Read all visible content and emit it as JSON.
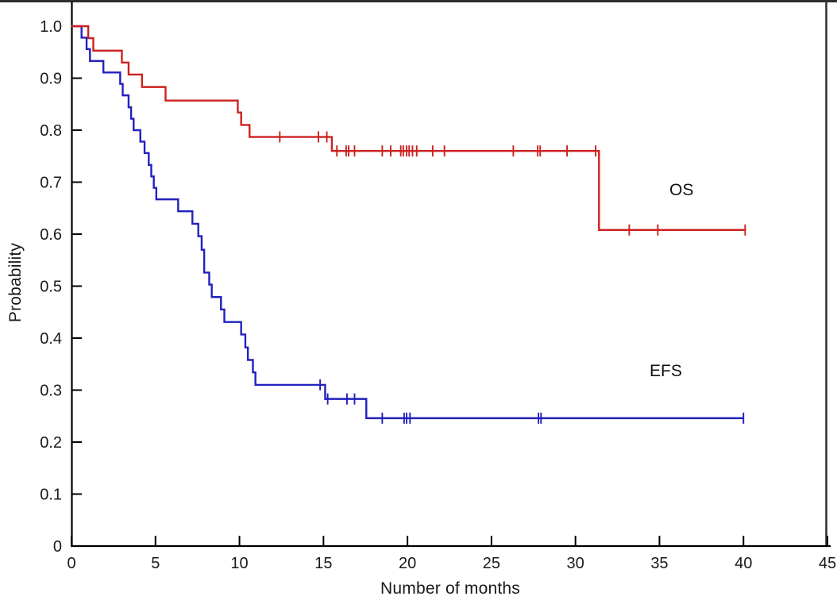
{
  "figure": {
    "ylabel": "Probability",
    "xlabel": "Number of months"
  },
  "chart_data": {
    "type": "line",
    "subtype": "kaplan-meier-step",
    "title": "",
    "xlabel": "Number of months",
    "ylabel": "Probability",
    "xlim": [
      0,
      45
    ],
    "ylim": [
      0,
      1.0
    ],
    "grid": false,
    "legend_position": "inline-labels",
    "x_ticks": [
      {
        "v": 0,
        "label": "0"
      },
      {
        "v": 5,
        "label": "5"
      },
      {
        "v": 10,
        "label": "10"
      },
      {
        "v": 15,
        "label": "15"
      },
      {
        "v": 20,
        "label": "20"
      },
      {
        "v": 25,
        "label": "25"
      },
      {
        "v": 30,
        "label": "30"
      },
      {
        "v": 35,
        "label": "35"
      },
      {
        "v": 40,
        "label": "40"
      },
      {
        "v": 45,
        "label": "45"
      }
    ],
    "y_ticks": [
      {
        "v": 0.0,
        "label": "0"
      },
      {
        "v": 0.1,
        "label": "0.1"
      },
      {
        "v": 0.2,
        "label": "0.2"
      },
      {
        "v": 0.3,
        "label": "0.3"
      },
      {
        "v": 0.4,
        "label": "0.4"
      },
      {
        "v": 0.5,
        "label": "0.5"
      },
      {
        "v": 0.6,
        "label": "0.6"
      },
      {
        "v": 0.7,
        "label": "0.7"
      },
      {
        "v": 0.8,
        "label": "0.8"
      },
      {
        "v": 0.9,
        "label": "0.9"
      },
      {
        "v": 1.0,
        "label": "1.0"
      }
    ],
    "series": [
      {
        "name": "EFS",
        "color": "#2221bd",
        "label_x_month": 35.75,
        "label_y_prob": 0.318,
        "end_month": 40.0,
        "steps": [
          [
            0,
            1.0
          ],
          [
            0.6,
            0.978
          ],
          [
            0.9,
            0.956
          ],
          [
            1.1,
            0.933
          ],
          [
            1.9,
            0.911
          ],
          [
            2.9,
            0.889
          ],
          [
            3.05,
            0.867
          ],
          [
            3.4,
            0.844
          ],
          [
            3.55,
            0.822
          ],
          [
            3.7,
            0.8
          ],
          [
            4.1,
            0.778
          ],
          [
            4.35,
            0.756
          ],
          [
            4.6,
            0.733
          ],
          [
            4.75,
            0.711
          ],
          [
            4.9,
            0.689
          ],
          [
            5.05,
            0.667
          ],
          [
            6.35,
            0.644
          ],
          [
            7.2,
            0.62
          ],
          [
            7.55,
            0.596
          ],
          [
            7.75,
            0.57
          ],
          [
            7.9,
            0.526
          ],
          [
            8.2,
            0.503
          ],
          [
            8.35,
            0.479
          ],
          [
            8.9,
            0.455
          ],
          [
            9.1,
            0.431
          ],
          [
            10.1,
            0.407
          ],
          [
            10.35,
            0.382
          ],
          [
            10.5,
            0.358
          ],
          [
            10.8,
            0.334
          ],
          [
            10.95,
            0.31
          ],
          [
            15.1,
            0.283
          ],
          [
            17.55,
            0.246
          ]
        ],
        "censor_marks": [
          [
            14.8,
            0.31
          ],
          [
            15.25,
            0.283
          ],
          [
            16.4,
            0.283
          ],
          [
            16.85,
            0.283
          ],
          [
            18.5,
            0.246
          ],
          [
            19.8,
            0.246
          ],
          [
            19.95,
            0.246
          ],
          [
            20.15,
            0.246
          ],
          [
            27.8,
            0.246
          ],
          [
            27.95,
            0.246
          ],
          [
            40.0,
            0.246
          ]
        ]
      },
      {
        "name": "OS",
        "color": "#cc2120",
        "label_x_month": 36.5,
        "label_y_prob": 0.685,
        "end_month": 40.1,
        "steps": [
          [
            0,
            1.0
          ],
          [
            1.0,
            0.977
          ],
          [
            1.3,
            0.953
          ],
          [
            3.0,
            0.93
          ],
          [
            3.4,
            0.907
          ],
          [
            4.2,
            0.883
          ],
          [
            5.6,
            0.857
          ],
          [
            9.9,
            0.834
          ],
          [
            10.1,
            0.81
          ],
          [
            10.6,
            0.787
          ],
          [
            15.5,
            0.76
          ],
          [
            31.4,
            0.608
          ]
        ],
        "censor_marks": [
          [
            12.4,
            0.787
          ],
          [
            14.7,
            0.787
          ],
          [
            15.2,
            0.787
          ],
          [
            15.8,
            0.76
          ],
          [
            16.35,
            0.76
          ],
          [
            16.5,
            0.76
          ],
          [
            16.85,
            0.76
          ],
          [
            18.5,
            0.76
          ],
          [
            19.0,
            0.76
          ],
          [
            19.6,
            0.76
          ],
          [
            19.75,
            0.76
          ],
          [
            19.95,
            0.76
          ],
          [
            20.1,
            0.76
          ],
          [
            20.3,
            0.76
          ],
          [
            20.55,
            0.76
          ],
          [
            21.5,
            0.76
          ],
          [
            22.2,
            0.76
          ],
          [
            26.3,
            0.76
          ],
          [
            27.75,
            0.76
          ],
          [
            27.9,
            0.76
          ],
          [
            29.5,
            0.76
          ],
          [
            31.2,
            0.76
          ],
          [
            33.2,
            0.608
          ],
          [
            34.9,
            0.608
          ],
          [
            40.1,
            0.608
          ]
        ]
      }
    ]
  }
}
